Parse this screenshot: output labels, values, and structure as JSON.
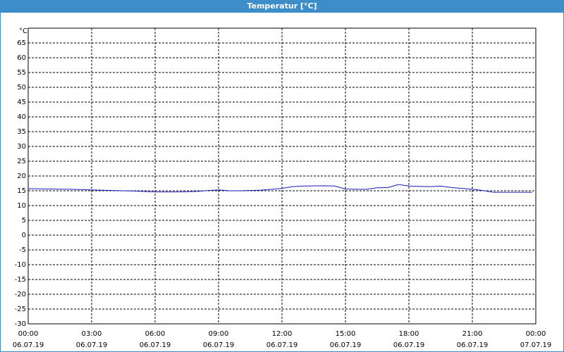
{
  "chart_data": {
    "type": "line",
    "title": "Temperatur [°C]",
    "y_label": "°C",
    "x": [
      0,
      1,
      2,
      3,
      4,
      5,
      6,
      7,
      8,
      8.5,
      9,
      9.5,
      10,
      11,
      12,
      12.5,
      13,
      14,
      14.5,
      15,
      15.5,
      16,
      16.5,
      17,
      17.5,
      18,
      18.5,
      19,
      19.5,
      20,
      21,
      21.5,
      22,
      23,
      23.83
    ],
    "series": [
      {
        "name": "Temperatur",
        "color": "#1a1ab8",
        "values": [
          15.7,
          15.6,
          15.5,
          15.3,
          15.1,
          14.9,
          14.6,
          14.6,
          14.8,
          15.1,
          15.3,
          15.0,
          15.0,
          15.2,
          15.8,
          16.4,
          16.6,
          16.7,
          16.6,
          15.6,
          15.5,
          15.5,
          16.0,
          16.1,
          17.1,
          16.6,
          16.5,
          16.4,
          16.6,
          16.1,
          15.5,
          15.1,
          14.5,
          14.5,
          14.5
        ]
      }
    ],
    "xlim": [
      0,
      24
    ],
    "xticks": [
      {
        "value": 0,
        "label": "00:00"
      },
      {
        "value": 3,
        "label": "03:00"
      },
      {
        "value": 6,
        "label": "06:00"
      },
      {
        "value": 9,
        "label": "09:00"
      },
      {
        "value": 12,
        "label": "12:00"
      },
      {
        "value": 15,
        "label": "15:00"
      },
      {
        "value": 18,
        "label": "18:00"
      },
      {
        "value": 21,
        "label": "21:00"
      },
      {
        "value": 24,
        "label": "00:00"
      }
    ],
    "xtick_dates": [
      "06.07.19",
      "06.07.19",
      "06.07.19",
      "06.07.19",
      "06.07.19",
      "06.07.19",
      "06.07.19",
      "06.07.19",
      "07.07.19"
    ],
    "ylim": [
      -30,
      70
    ],
    "yticks": [
      -30,
      -25,
      -20,
      -15,
      -10,
      -5,
      0,
      5,
      10,
      15,
      20,
      25,
      30,
      35,
      40,
      45,
      50,
      55,
      60,
      65
    ],
    "grid": true
  }
}
